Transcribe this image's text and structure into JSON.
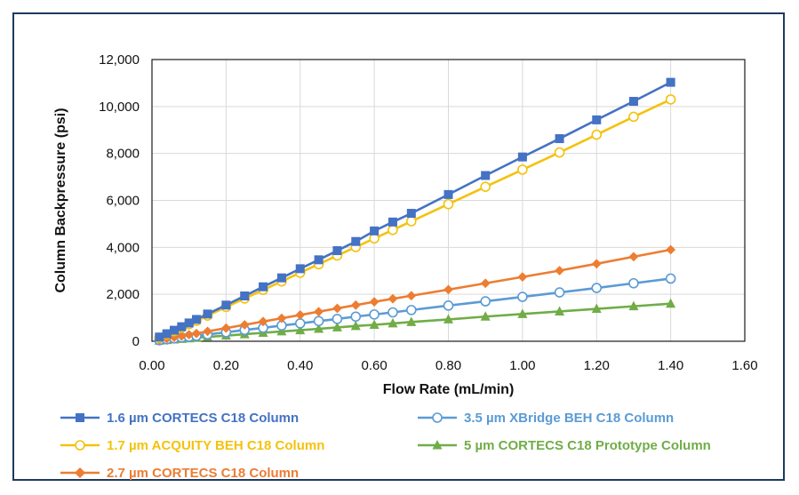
{
  "chart_data": {
    "type": "line",
    "title": "",
    "xlabel": "Flow Rate (mL/min)",
    "ylabel": "Column Backpressure (psi)",
    "xlim": [
      0,
      1.6
    ],
    "ylim": [
      0,
      12000
    ],
    "x_ticks": [
      0,
      0.2,
      0.4,
      0.6,
      0.8,
      1.0,
      1.2,
      1.4,
      1.6
    ],
    "x_tick_labels": [
      "0.00",
      "0.20",
      "0.40",
      "0.60",
      "0.80",
      "1.00",
      "1.20",
      "1.40",
      "1.60"
    ],
    "y_ticks": [
      0,
      2000,
      4000,
      6000,
      8000,
      10000,
      12000
    ],
    "y_tick_labels": [
      "0",
      "2,000",
      "4,000",
      "6,000",
      "8,000",
      "10,000",
      "12,000"
    ],
    "grid": true,
    "legend_position": "bottom",
    "series": [
      {
        "name": "1.6 µm CORTECS C18 Column",
        "color": "#4472c4",
        "marker": "square",
        "x": [
          0.02,
          0.04,
          0.06,
          0.08,
          0.1,
          0.12,
          0.15,
          0.2,
          0.25,
          0.3,
          0.35,
          0.4,
          0.45,
          0.5,
          0.55,
          0.6,
          0.65,
          0.7,
          0.8,
          0.9,
          1.0,
          1.1,
          1.2,
          1.3,
          1.4
        ],
        "y": [
          180,
          320,
          470,
          620,
          780,
          930,
          1160,
          1540,
          1930,
          2320,
          2700,
          3090,
          3470,
          3860,
          4250,
          4700,
          5080,
          5450,
          6250,
          7060,
          7850,
          8630,
          9430,
          10220,
          11030
        ]
      },
      {
        "name": "1.7 µm ACQUITY BEH C18 Column",
        "color": "#f4c20d",
        "marker": "circle-open",
        "x": [
          0.02,
          0.04,
          0.06,
          0.08,
          0.1,
          0.12,
          0.15,
          0.2,
          0.25,
          0.3,
          0.35,
          0.4,
          0.45,
          0.5,
          0.55,
          0.6,
          0.65,
          0.7,
          0.8,
          0.9,
          1.0,
          1.1,
          1.2,
          1.3,
          1.4
        ],
        "y": [
          150,
          290,
          430,
          580,
          730,
          870,
          1090,
          1460,
          1820,
          2190,
          2550,
          2920,
          3280,
          3650,
          4010,
          4380,
          4740,
          5110,
          5840,
          6580,
          7310,
          8040,
          8800,
          9560,
          10300
        ]
      },
      {
        "name": "2.7 µm CORTECS C18 Column",
        "color": "#ed7d31",
        "marker": "diamond",
        "x": [
          0.02,
          0.04,
          0.06,
          0.08,
          0.1,
          0.12,
          0.15,
          0.2,
          0.25,
          0.3,
          0.35,
          0.4,
          0.45,
          0.5,
          0.55,
          0.6,
          0.65,
          0.7,
          0.8,
          0.9,
          1.0,
          1.1,
          1.2,
          1.3,
          1.4
        ],
        "y": [
          60,
          110,
          170,
          220,
          280,
          330,
          420,
          560,
          700,
          840,
          980,
          1120,
          1260,
          1400,
          1540,
          1680,
          1810,
          1940,
          2200,
          2470,
          2740,
          3010,
          3300,
          3600,
          3900
        ]
      },
      {
        "name": "3.5 µm XBridge BEH C18 Column",
        "color": "#5b9bd5",
        "marker": "circle-open",
        "x": [
          0.02,
          0.04,
          0.06,
          0.08,
          0.1,
          0.12,
          0.15,
          0.2,
          0.25,
          0.3,
          0.35,
          0.4,
          0.45,
          0.5,
          0.55,
          0.6,
          0.65,
          0.7,
          0.8,
          0.9,
          1.0,
          1.1,
          1.2,
          1.3,
          1.4
        ],
        "y": [
          40,
          80,
          120,
          160,
          190,
          230,
          290,
          380,
          480,
          570,
          670,
          760,
          860,
          950,
          1050,
          1140,
          1230,
          1330,
          1520,
          1700,
          1890,
          2080,
          2270,
          2470,
          2670
        ]
      },
      {
        "name": "5 µm CORTECS C18 Prototype Column",
        "color": "#70ad47",
        "marker": "triangle",
        "x": [
          0.02,
          0.04,
          0.06,
          0.08,
          0.1,
          0.12,
          0.15,
          0.2,
          0.25,
          0.3,
          0.35,
          0.4,
          0.45,
          0.5,
          0.55,
          0.6,
          0.65,
          0.7,
          0.8,
          0.9,
          1.0,
          1.1,
          1.2,
          1.3,
          1.4
        ],
        "y": [
          25,
          50,
          75,
          100,
          125,
          150,
          185,
          240,
          300,
          360,
          420,
          470,
          530,
          590,
          650,
          700,
          760,
          820,
          930,
          1050,
          1160,
          1270,
          1380,
          1490,
          1600
        ]
      }
    ]
  }
}
